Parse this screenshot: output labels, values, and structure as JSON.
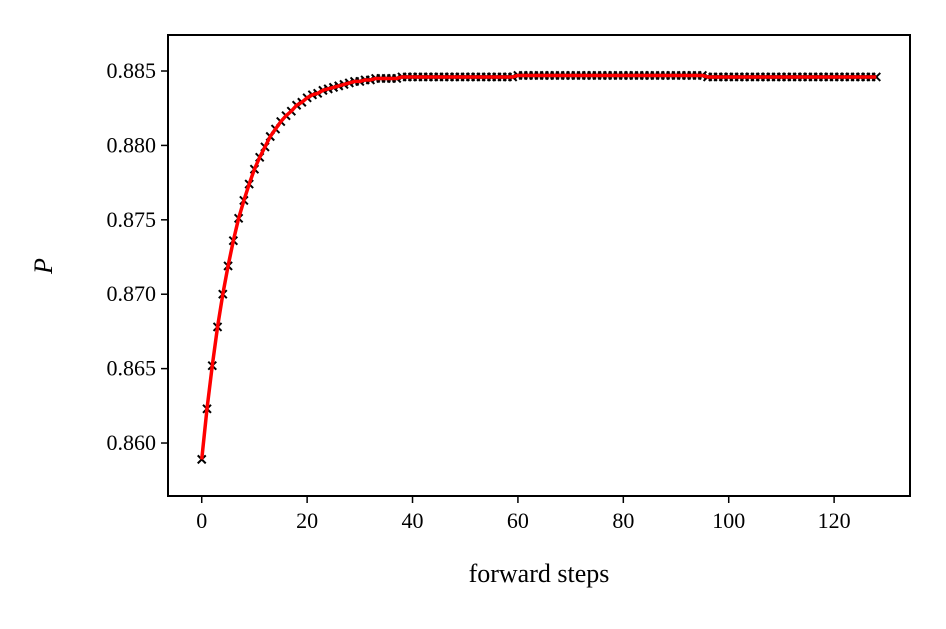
{
  "chart_data": {
    "type": "line",
    "xlabel": "forward steps",
    "ylabel": "P",
    "x": [
      0,
      1,
      2,
      3,
      4,
      5,
      6,
      7,
      8,
      9,
      10,
      11,
      12,
      13,
      14,
      15,
      16,
      17,
      18,
      19,
      20,
      21,
      22,
      23,
      24,
      25,
      26,
      27,
      28,
      29,
      30,
      31,
      32,
      33,
      34,
      35,
      36,
      37,
      38,
      39,
      40,
      41,
      42,
      43,
      44,
      45,
      46,
      47,
      48,
      49,
      50,
      51,
      52,
      53,
      54,
      55,
      56,
      57,
      58,
      59,
      60,
      61,
      62,
      63,
      64,
      65,
      66,
      67,
      68,
      69,
      70,
      71,
      72,
      73,
      74,
      75,
      76,
      77,
      78,
      79,
      80,
      81,
      82,
      83,
      84,
      85,
      86,
      87,
      88,
      89,
      90,
      91,
      92,
      93,
      94,
      95,
      96,
      97,
      98,
      99,
      100,
      101,
      102,
      103,
      104,
      105,
      106,
      107,
      108,
      109,
      110,
      111,
      112,
      113,
      114,
      115,
      116,
      117,
      118,
      119,
      120,
      121,
      122,
      123,
      124,
      125,
      126,
      127,
      128
    ],
    "series": [
      {
        "line_color": "#ff0000",
        "marker_color": "#000000",
        "marker": "x",
        "values": [
          0.8589,
          0.8623,
          0.8652,
          0.8678,
          0.87,
          0.8719,
          0.8736,
          0.8751,
          0.8763,
          0.8774,
          0.8784,
          0.8792,
          0.8799,
          0.8806,
          0.8811,
          0.8816,
          0.882,
          0.8823,
          0.8827,
          0.8829,
          0.8832,
          0.8834,
          0.8835,
          0.8837,
          0.8838,
          0.8839,
          0.884,
          0.8841,
          0.8842,
          0.8843,
          0.8843,
          0.8844,
          0.8844,
          0.8845,
          0.8845,
          0.8845,
          0.8845,
          0.8845,
          0.8846,
          0.8846,
          0.8846,
          0.8846,
          0.8846,
          0.8846,
          0.8846,
          0.8846,
          0.8846,
          0.8846,
          0.8846,
          0.8846,
          0.8846,
          0.8846,
          0.8846,
          0.8846,
          0.8846,
          0.8846,
          0.8846,
          0.8846,
          0.8846,
          0.8846,
          0.8847,
          0.8847,
          0.8847,
          0.8847,
          0.8847,
          0.8847,
          0.8847,
          0.8847,
          0.8847,
          0.8847,
          0.8847,
          0.8847,
          0.8847,
          0.8847,
          0.8847,
          0.8847,
          0.8847,
          0.8847,
          0.8847,
          0.8847,
          0.8847,
          0.8847,
          0.8847,
          0.8847,
          0.8847,
          0.8847,
          0.8847,
          0.8847,
          0.8847,
          0.8847,
          0.8847,
          0.8847,
          0.8847,
          0.8847,
          0.8847,
          0.8847,
          0.8846,
          0.8846,
          0.8846,
          0.8846,
          0.8846,
          0.8846,
          0.8846,
          0.8846,
          0.8846,
          0.8846,
          0.8846,
          0.8846,
          0.8846,
          0.8846,
          0.8846,
          0.8846,
          0.8846,
          0.8846,
          0.8846,
          0.8846,
          0.8846,
          0.8846,
          0.8846,
          0.8846,
          0.8846,
          0.8846,
          0.8846,
          0.8846,
          0.8846,
          0.8846,
          0.8846,
          0.8846,
          0.8846
        ]
      }
    ],
    "xlim": [
      -6.4,
      134.4
    ],
    "xticks": [
      0,
      20,
      40,
      60,
      80,
      100,
      120
    ],
    "ylim": [
      0.85644,
      0.88742
    ],
    "yticks": [
      {
        "value": 0.86,
        "label": "0.860"
      },
      0.865,
      {
        "value": 0.87,
        "label": "0.870"
      },
      0.875,
      {
        "value": 0.88,
        "label": "0.880"
      },
      0.885
    ],
    "grid": false
  }
}
